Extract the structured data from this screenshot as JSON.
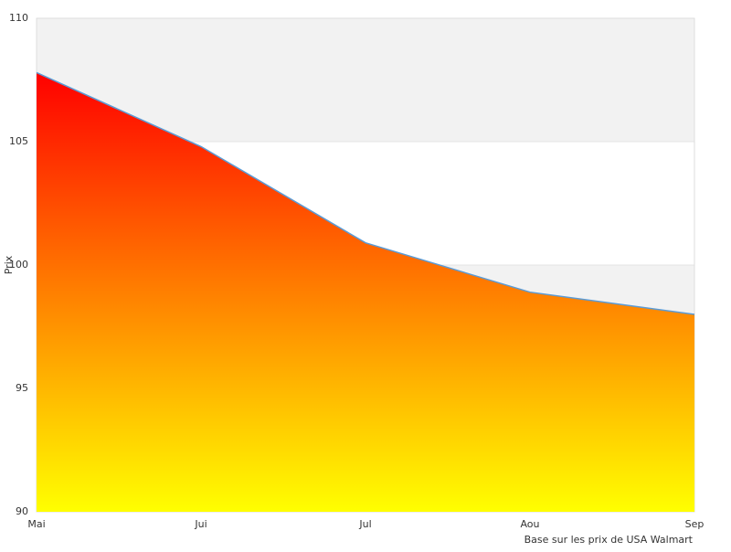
{
  "chart_data": {
    "type": "area",
    "y_label": "Prix",
    "note": "Base sur les prix de USA Walmart",
    "categories": [
      "Mai",
      "Jui",
      "Jul",
      "Aou",
      "Sep"
    ],
    "series": [
      {
        "color": "#5b9bd5",
        "values": [
          107.8,
          104.8,
          100.9,
          98.9,
          98.0
        ]
      }
    ],
    "fill_gradient": [
      "#ff0000",
      "#ffff00"
    ],
    "ylim": [
      90,
      110
    ],
    "yticks": [
      90,
      95,
      100,
      105,
      110
    ],
    "grid": true
  }
}
